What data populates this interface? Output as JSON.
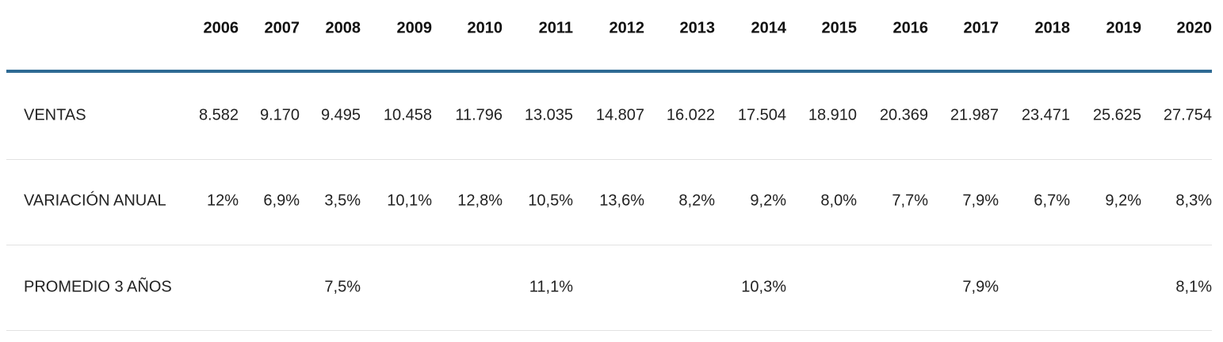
{
  "table": {
    "header": [
      "2006",
      "2007",
      "2008",
      "2009",
      "2010",
      "2011",
      "2012",
      "2013",
      "2014",
      "2015",
      "2016",
      "2017",
      "2018",
      "2019",
      "2020"
    ],
    "rows": [
      {
        "label": "VENTAS",
        "cells": [
          "8.582",
          "9.170",
          "9.495",
          "10.458",
          "11.796",
          "13.035",
          "14.807",
          "16.022",
          "17.504",
          "18.910",
          "20.369",
          "21.987",
          "23.471",
          "25.625",
          "27.754"
        ]
      },
      {
        "label": "VARIACIÓN ANUAL",
        "cells": [
          "12%",
          "6,9%",
          "3,5%",
          "10,1%",
          "12,8%",
          "10,5%",
          "13,6%",
          "8,2%",
          "9,2%",
          "8,0%",
          "7,7%",
          "7,9%",
          "6,7%",
          "9,2%",
          "8,3%"
        ]
      },
      {
        "label": "PROMEDIO 3 AÑOS",
        "cells": [
          null,
          null,
          "7,5%",
          null,
          null,
          "11,1%",
          null,
          null,
          "10,3%",
          null,
          null,
          "7,9%",
          null,
          null,
          "8,1%"
        ]
      }
    ]
  }
}
